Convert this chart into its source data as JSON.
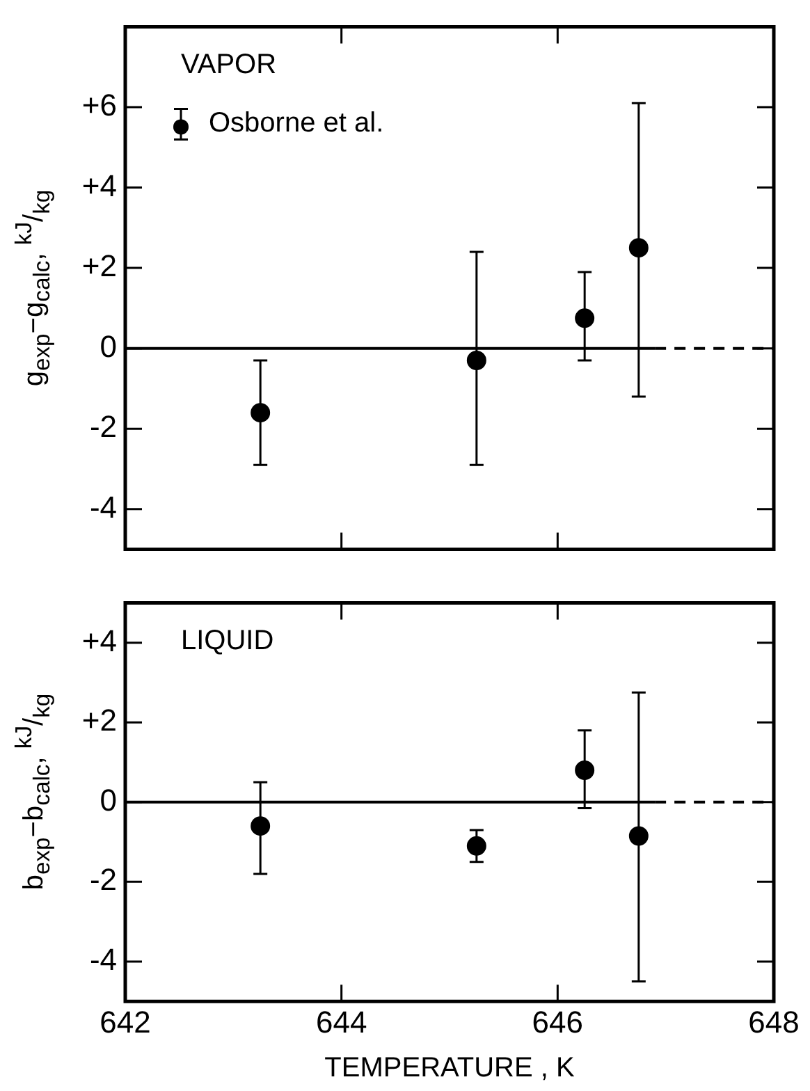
{
  "chart_data": [
    {
      "type": "scatter",
      "ylabel": "g$_{exp}$−g$_{calc}$, $^{kJ}$/$_{kg}$",
      "annotations": [
        "VAPOR"
      ],
      "xlim": [
        642,
        648
      ],
      "xticks": [
        642,
        644,
        646,
        648
      ],
      "ylim": [
        -5,
        8
      ],
      "yticks": [
        -4,
        -2,
        0,
        {
          "value": 2,
          "label": "+2"
        },
        {
          "value": 4,
          "label": "+4"
        },
        {
          "value": 6,
          "label": "+6"
        }
      ],
      "tick_labels": "y",
      "legend": "top left",
      "grid": false,
      "marker": "circle",
      "series": [
        {
          "name": "Osborne et al.",
          "color": "#000000",
          "x": [
            643.25,
            645.25,
            646.25,
            646.75
          ],
          "values": [
            -1.6,
            -0.3,
            0.75,
            2.5
          ],
          "errors": [
            [
              -2.9,
              -0.3
            ],
            [
              -2.9,
              2.4
            ],
            [
              -0.3,
              1.9
            ],
            [
              -1.2,
              6.1
            ]
          ]
        },
        {
          "type": "line",
          "color": "#000000",
          "x": [
            642,
            646.9
          ],
          "values": [
            0,
            0
          ],
          "line_style": "solid",
          "marker": "none"
        },
        {
          "type": "line",
          "color": "#000000",
          "x": [
            646.9,
            648
          ],
          "values": [
            0,
            0
          ],
          "line_style": "dashed",
          "marker": "none"
        }
      ]
    },
    {
      "type": "scatter",
      "xlabel": "TEMPERATURE , K",
      "ylabel": "b$_{exp}$−b$_{calc}$, $^{kJ}$/$_{kg}$",
      "annotations": [
        "LIQUID"
      ],
      "xlim": [
        642,
        648
      ],
      "xticks": [
        642,
        644,
        646,
        648
      ],
      "ylim": [
        -5,
        5
      ],
      "yticks": [
        -4,
        -2,
        0,
        {
          "value": 2,
          "label": "+2"
        },
        {
          "value": 4,
          "label": "+4"
        }
      ],
      "grid": false,
      "marker": "circle",
      "series": [
        {
          "color": "#000000",
          "x": [
            643.25,
            645.25,
            646.25,
            646.75
          ],
          "values": [
            -0.6,
            -1.1,
            0.8,
            -0.85
          ],
          "errors": [
            [
              -1.8,
              0.5
            ],
            [
              -1.5,
              -0.7
            ],
            [
              -0.15,
              1.8
            ],
            [
              -4.5,
              2.75
            ]
          ]
        },
        {
          "type": "line",
          "color": "#000000",
          "x": [
            642,
            646.9
          ],
          "values": [
            0,
            0
          ],
          "line_style": "solid",
          "marker": "none"
        },
        {
          "type": "line",
          "color": "#000000",
          "x": [
            646.9,
            648
          ],
          "values": [
            0,
            0
          ],
          "line_style": "dashed",
          "marker": "none"
        }
      ]
    }
  ]
}
